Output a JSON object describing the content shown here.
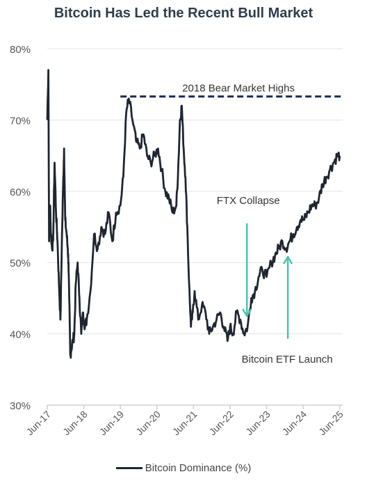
{
  "chart_data": {
    "type": "line",
    "title": "Bitcoin Has Led the Recent Bull Market",
    "xlabel": "",
    "ylabel": "",
    "ylim": [
      30,
      80
    ],
    "yticks": [
      30,
      40,
      50,
      60,
      70,
      80
    ],
    "ytick_labels": [
      "30%",
      "40%",
      "50%",
      "60%",
      "70%",
      "80%"
    ],
    "xlim": [
      2017.42,
      2025.5
    ],
    "xticks": [
      2017.42,
      2018.42,
      2019.42,
      2020.42,
      2021.42,
      2022.42,
      2023.42,
      2024.42,
      2025.42
    ],
    "xtick_labels": [
      "Jun-17",
      "Jun-18",
      "Jun-19",
      "Jun-20",
      "Jun-21",
      "Jun-22",
      "Jun-23",
      "Jun-24",
      "Jun-25"
    ],
    "grid": "horizontal",
    "legend": "bottom",
    "colors": {
      "series": "#1f2630",
      "reference": "#1d2b5c",
      "arrows": "#4fc0ac",
      "grid": "#e3e3e3"
    },
    "series": [
      {
        "name": "Bitcoin Dominance (%)",
        "x": [
          2017.42,
          2017.45,
          2017.47,
          2017.5,
          2017.52,
          2017.55,
          2017.58,
          2017.62,
          2017.66,
          2017.7,
          2017.74,
          2017.78,
          2017.82,
          2017.86,
          2017.88,
          2017.91,
          2017.95,
          2017.98,
          2018.0,
          2018.02,
          2018.05,
          2018.08,
          2018.12,
          2018.16,
          2018.2,
          2018.25,
          2018.3,
          2018.35,
          2018.4,
          2018.45,
          2018.5,
          2018.6,
          2018.7,
          2018.8,
          2018.9,
          2019.0,
          2019.1,
          2019.2,
          2019.3,
          2019.42,
          2019.5,
          2019.58,
          2019.65,
          2019.75,
          2019.85,
          2019.95,
          2020.05,
          2020.15,
          2020.25,
          2020.35,
          2020.45,
          2020.55,
          2020.65,
          2020.75,
          2020.85,
          2020.95,
          2021.0,
          2021.05,
          2021.1,
          2021.15,
          2021.2,
          2021.25,
          2021.3,
          2021.35,
          2021.4,
          2021.45,
          2021.55,
          2021.65,
          2021.75,
          2021.85,
          2021.95,
          2022.05,
          2022.15,
          2022.25,
          2022.35,
          2022.42,
          2022.5,
          2022.6,
          2022.7,
          2022.8,
          2022.9,
          2023.0,
          2023.1,
          2023.2,
          2023.3,
          2023.42,
          2023.55,
          2023.65,
          2023.75,
          2023.85,
          2023.95,
          2024.05,
          2024.15,
          2024.25,
          2024.35,
          2024.45,
          2024.55,
          2024.65,
          2024.75,
          2024.85,
          2024.95,
          2025.05,
          2025.15,
          2025.25,
          2025.35,
          2025.42
        ],
        "values": [
          70,
          77,
          53,
          58,
          54,
          52,
          53,
          64,
          57,
          53,
          47,
          42,
          53,
          62,
          66,
          56,
          54,
          52,
          50,
          45,
          37,
          38,
          39,
          40,
          47,
          50,
          45,
          40,
          43,
          41,
          42,
          46,
          54,
          52,
          55,
          54,
          57,
          53,
          57,
          58,
          62,
          71,
          73,
          70,
          67,
          66,
          68,
          65,
          64,
          65,
          66,
          63,
          60,
          59,
          57,
          58,
          63,
          70,
          72,
          66,
          62,
          55,
          47,
          41,
          43,
          46,
          42,
          44,
          43,
          40,
          41,
          42,
          43,
          41,
          39,
          41,
          40,
          43,
          42,
          40,
          41,
          45,
          46,
          48,
          49,
          48,
          50,
          51,
          52,
          53,
          52,
          53,
          54,
          55,
          56,
          56,
          57,
          58,
          58,
          59,
          61,
          62,
          63,
          64,
          65,
          65
        ]
      }
    ],
    "reference_lines": [
      {
        "label": "2018 Bear Market Highs",
        "y": 73.3,
        "x_start": 2019.42,
        "x_end": 2025.5
      }
    ],
    "annotations": [
      {
        "label": "FTX Collapse",
        "arrow_x": 2022.88,
        "arrow_from": 55.5,
        "arrow_to": 42.5,
        "arrow_dir": "down"
      },
      {
        "label": "Bitcoin ETF Launch",
        "arrow_x": 2024.0,
        "arrow_from": 39.3,
        "arrow_to": 50.8,
        "arrow_dir": "up"
      }
    ],
    "legend_entries": [
      "Bitcoin Dominance (%)"
    ]
  }
}
